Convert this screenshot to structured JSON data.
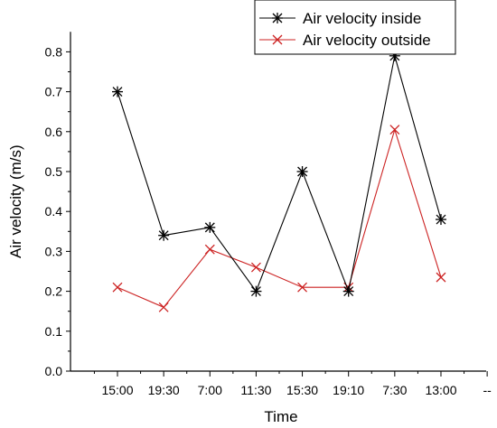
{
  "chart_data": {
    "type": "line",
    "categories": [
      "15:00",
      "19:30",
      "7:00",
      "11:30",
      "15:30",
      "19:10",
      "7:30",
      "13:00"
    ],
    "extra_x_tick_label": "--",
    "xlabel": "Time",
    "ylabel": "Air velocity (m/s)",
    "ylim": [
      0.0,
      0.85
    ],
    "yticks": [
      "0.0",
      "0.1",
      "0.2",
      "0.3",
      "0.4",
      "0.5",
      "0.6",
      "0.7",
      "0.8"
    ],
    "grid": false,
    "legend_position": "top-right",
    "series": [
      {
        "name": "Air velocity inside",
        "color": "#000000",
        "marker": "asterisk",
        "values": [
          0.7,
          0.34,
          0.36,
          0.2,
          0.5,
          0.2,
          0.79,
          0.38
        ]
      },
      {
        "name": "Air velocity outside",
        "color": "#cc2222",
        "marker": "cross",
        "values": [
          0.21,
          0.16,
          0.305,
          0.26,
          0.21,
          0.21,
          0.605,
          0.235
        ]
      }
    ]
  }
}
